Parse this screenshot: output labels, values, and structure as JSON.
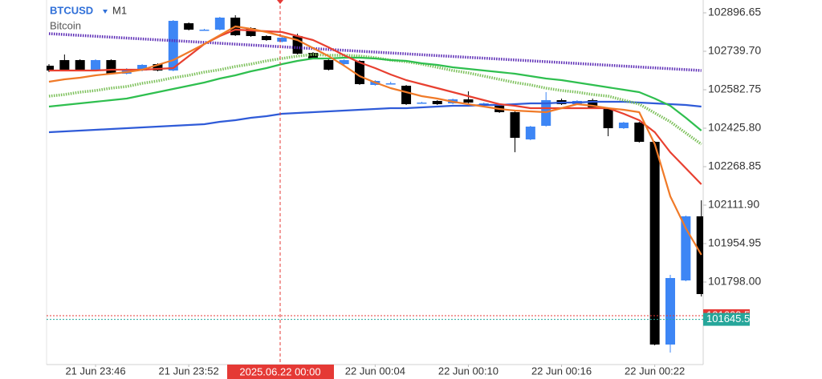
{
  "chart_data": {
    "type": "candlestick",
    "title": "BTCUSD",
    "timeframe": "M1",
    "subtitle": "Bitcoin",
    "crosshair_label": "2025.06.22 00:00",
    "up_color": "#3d86f5",
    "down_color": "#000000",
    "categories": [
      null,
      null,
      null,
      "21 Jun 23:46",
      null,
      null,
      null,
      null,
      null,
      "21 Jun 23:52",
      null,
      null,
      null,
      null,
      null,
      null,
      null,
      null,
      null,
      null,
      null,
      "22 Jun 00:04",
      null,
      null,
      null,
      null,
      null,
      "22 Jun 00:10",
      null,
      null,
      null,
      null,
      null,
      "22 Jun 00:16",
      null,
      null,
      null,
      null,
      null,
      "22 Jun 00:22",
      null,
      null,
      null
    ],
    "open": [
      102680.8,
      102703.8,
      102703.8,
      102661.2,
      102703.8,
      102648.2,
      102661.2,
      102687.4,
      102661.2,
      102854.1,
      102828.0,
      102828.0,
      102877.1,
      102834.5,
      102801.9,
      102778.9,
      102801.9,
      102733.2,
      102703.8,
      102687.4,
      102700.5,
      102602.4,
      102608.9,
      102599.1,
      102530.4,
      102537.0,
      102527.2,
      102543.5,
      102527.2,
      102517.4,
      102491.2,
      102380.0,
      102435.6,
      102540.3,
      102523.9,
      102540.3,
      102507.6,
      102425.8,
      102448.7,
      102370.2,
      101542.9,
      101804.5,
      102066.1
    ],
    "high": [
      102687.4,
      102726.6,
      102707.0,
      102707.0,
      102707.0,
      102671.1,
      102687.4,
      102690.7,
      102867.2,
      102857.4,
      102831.3,
      102880.3,
      102886.9,
      102837.8,
      102805.1,
      102798.6,
      102811.7,
      102736.5,
      102707.0,
      102707.0,
      102703.8,
      102622.0,
      102615.5,
      102602.4,
      102533.7,
      102540.3,
      102546.8,
      102576.2,
      102530.4,
      102520.6,
      102494.5,
      102435.6,
      102573.0,
      102546.8,
      102540.3,
      102546.8,
      102510.8,
      102452.0,
      102452.0,
      102373.5,
      101827.4,
      102069.4,
      102131.5
    ],
    "low": [
      102654.7,
      102658.0,
      102658.0,
      102658.0,
      102644.9,
      102644.9,
      102658.0,
      102658.0,
      102658.0,
      102824.7,
      102824.7,
      102824.7,
      102801.9,
      102798.6,
      102782.2,
      102775.7,
      102726.6,
      102707.0,
      102661.2,
      102684.1,
      102602.4,
      102599.1,
      102605.7,
      102520.6,
      102527.2,
      102520.6,
      102523.9,
      102527.2,
      102523.9,
      102488.0,
      102327.7,
      102376.7,
      102432.3,
      102520.6,
      102520.6,
      102504.3,
      102393.1,
      102422.5,
      102366.9,
      101539.6,
      101510.2,
      101801.2,
      101739.1
    ],
    "close": [
      102661.2,
      102661.2,
      102661.2,
      102703.8,
      102648.2,
      102667.8,
      102684.1,
      102661.2,
      102863.9,
      102828.0,
      102828.0,
      102877.1,
      102805.1,
      102801.9,
      102785.5,
      102795.3,
      102729.9,
      102710.3,
      102664.5,
      102703.8,
      102605.7,
      102618.7,
      102608.9,
      102523.9,
      102530.4,
      102523.9,
      102543.5,
      102530.4,
      102527.2,
      102491.2,
      102386.6,
      102432.3,
      102540.3,
      102523.9,
      102537.0,
      102507.6,
      102425.8,
      102448.7,
      102370.2,
      101542.9,
      101814.3,
      102066.1,
      101748.9
    ],
    "lines": [
      {
        "color": "#2f5bd8",
        "style": "solid",
        "values": [
          102409.5,
          102412.7,
          102416.0,
          102419.3,
          102422.5,
          102425.8,
          102429.1,
          102432.3,
          102435.6,
          102438.9,
          102442.2,
          102452.0,
          102458.5,
          102468.3,
          102474.9,
          102484.7,
          102487.9,
          102491.2,
          102494.5,
          102497.7,
          102501.0,
          102504.3,
          102507.6,
          102507.6,
          102510.8,
          102514.1,
          102517.4,
          102517.4,
          102520.6,
          102520.6,
          102523.9,
          102527.2,
          102527.2,
          102530.4,
          102530.4,
          102533.7,
          102533.7,
          102533.7,
          102530.4,
          102527.2,
          102523.9,
          102520.6,
          102514.1
        ]
      },
      {
        "color": "#7cc05a",
        "style": "dotted",
        "values": [
          102556.6,
          102563.1,
          102573.0,
          102579.5,
          102589.3,
          102595.8,
          102608.9,
          102618.7,
          102631.8,
          102641.6,
          102654.7,
          102664.5,
          102677.6,
          102687.4,
          102700.5,
          102710.3,
          102720.1,
          102726.6,
          102723.4,
          102723.4,
          102720.1,
          102713.6,
          102703.8,
          102697.2,
          102687.4,
          102674.3,
          102661.2,
          102651.4,
          102638.4,
          102625.3,
          102612.2,
          102602.4,
          102589.3,
          102579.5,
          102573.0,
          102563.1,
          102556.6,
          102540.3,
          102523.9,
          102487.9,
          102452.0,
          102406.2,
          102360.4
        ]
      },
      {
        "color": "#2fbf4f",
        "style": "solid",
        "values": [
          102514.1,
          102520.6,
          102527.2,
          102533.7,
          102540.3,
          102546.8,
          102559.9,
          102573.0,
          102586.0,
          102599.1,
          102612.2,
          102628.5,
          102641.6,
          102658.0,
          102671.1,
          102687.4,
          102700.5,
          102710.3,
          102710.3,
          102713.6,
          102713.6,
          102710.3,
          102703.8,
          102700.5,
          102690.7,
          102684.1,
          102674.3,
          102667.8,
          102661.2,
          102654.7,
          102648.2,
          102638.4,
          102628.5,
          102622.0,
          102612.2,
          102602.4,
          102592.6,
          102582.8,
          102573.0,
          102546.8,
          102517.4,
          102468.3,
          102416.0
        ]
      },
      {
        "color": "#5b2bb5",
        "style": "dotted",
        "values": [
          102811.7,
          102808.1,
          102804.5,
          102801.0,
          102797.4,
          102793.8,
          102790.2,
          102786.6,
          102783.1,
          102779.5,
          102775.9,
          102772.3,
          102768.7,
          102765.2,
          102761.6,
          102758.0,
          102754.4,
          102750.8,
          102747.3,
          102743.7,
          102740.1,
          102736.5,
          102732.9,
          102729.3,
          102725.8,
          102722.2,
          102718.6,
          102715.0,
          102711.5,
          102707.9,
          102704.3,
          102700.7,
          102697.1,
          102693.6,
          102690.0,
          102686.4,
          102682.8,
          102679.2,
          102675.7,
          102672.1,
          102668.5,
          102664.9,
          102661.3
        ]
      },
      {
        "color": "#e84030",
        "style": "solid",
        "values": [
          102661.2,
          102661.2,
          102661.2,
          102661.2,
          102664.5,
          102664.5,
          102664.5,
          102667.8,
          102671.1,
          102720.1,
          102769.2,
          102801.9,
          102828.0,
          102824.7,
          102821.5,
          102818.2,
          102801.9,
          102785.5,
          102756.1,
          102723.4,
          102694.0,
          102671.1,
          102644.9,
          102622.0,
          102605.7,
          102589.3,
          102573.0,
          102556.6,
          102540.3,
          102523.9,
          102517.4,
          102507.6,
          102507.6,
          102507.6,
          102507.6,
          102507.6,
          102507.6,
          102484.7,
          102458.5,
          102409.5,
          102327.7,
          102262.3,
          102196.9
        ]
      },
      {
        "color": "#f07a28",
        "style": "solid",
        "values": [
          102615.5,
          102625.3,
          102631.8,
          102641.6,
          102648.2,
          102654.7,
          102664.5,
          102684.1,
          102703.8,
          102736.5,
          102769.2,
          102805.1,
          102841.1,
          102831.3,
          102818.2,
          102801.9,
          102785.5,
          102752.8,
          102720.1,
          102680.9,
          102638.4,
          102612.2,
          102589.3,
          102573.0,
          102556.6,
          102546.8,
          102533.7,
          102523.9,
          102514.1,
          102504.3,
          102497.7,
          102494.5,
          102491.2,
          102507.6,
          102523.9,
          102517.4,
          102507.6,
          102501.0,
          102491.2,
          102360.4,
          102147.9,
          102017.1,
          101909.1
        ]
      }
    ],
    "price_lines": [
      {
        "value": 101660.54,
        "color": "#e53935"
      },
      {
        "value": 101645.59,
        "color": "#26a69a"
      }
    ],
    "ylim": [
      101461.1,
      102949.0
    ],
    "yticks": [
      102896.65,
      {
        "value": 102739.7,
        "label": "102739.70"
      },
      102582.75,
      {
        "value": 102425.8,
        "label": "102425.80"
      },
      102268.85,
      {
        "value": 102111.9,
        "label": "102111.90"
      },
      101954.95,
      {
        "value": 101798.0,
        "label": "101798.00"
      }
    ]
  }
}
